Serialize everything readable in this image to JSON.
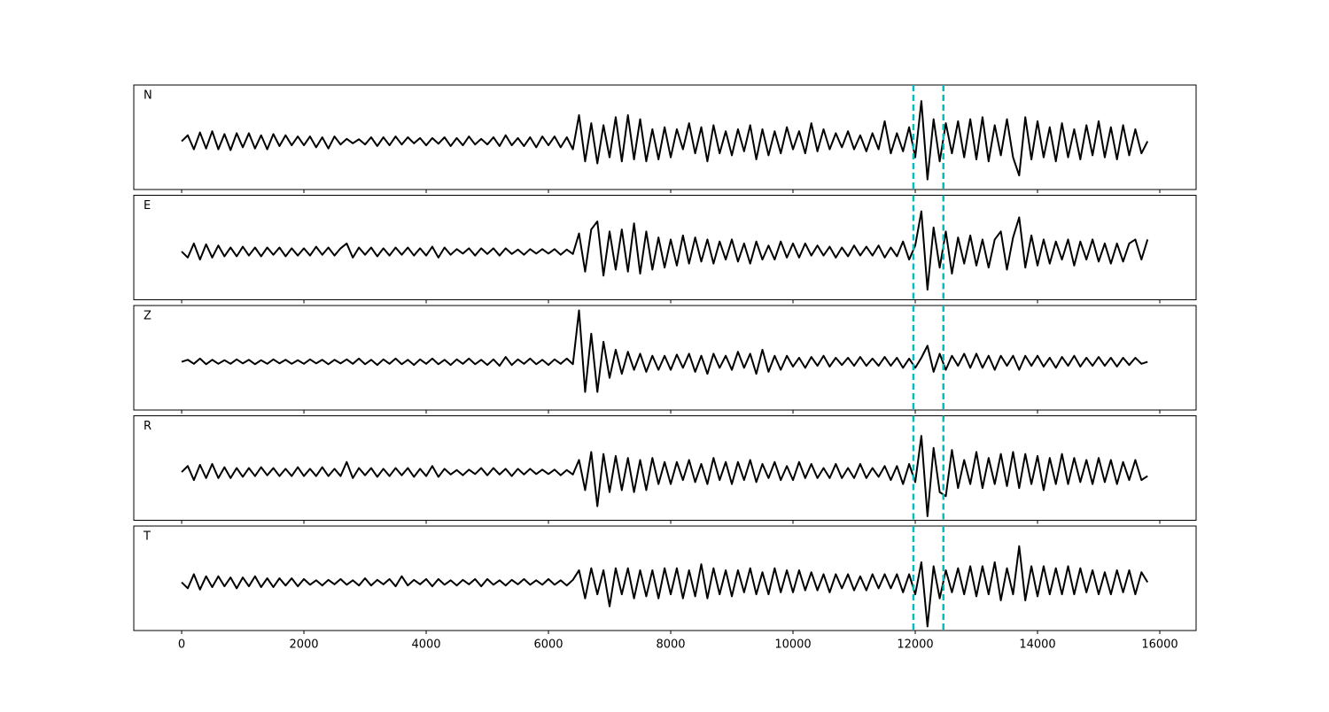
{
  "chart_data": {
    "type": "line",
    "x": [
      0,
      100,
      200,
      300,
      400,
      500,
      600,
      700,
      800,
      900,
      1000,
      1100,
      1200,
      1300,
      1400,
      1500,
      1600,
      1700,
      1800,
      1900,
      2000,
      2100,
      2200,
      2300,
      2400,
      2500,
      2600,
      2700,
      2800,
      2900,
      3000,
      3100,
      3200,
      3300,
      3400,
      3500,
      3600,
      3700,
      3800,
      3900,
      4000,
      4100,
      4200,
      4300,
      4400,
      4500,
      4600,
      4700,
      4800,
      4900,
      5000,
      5100,
      5200,
      5300,
      5400,
      5500,
      5600,
      5700,
      5800,
      5900,
      6000,
      6100,
      6200,
      6300,
      6400,
      6500,
      6600,
      6700,
      6800,
      6900,
      7000,
      7100,
      7200,
      7300,
      7400,
      7500,
      7600,
      7700,
      7800,
      7900,
      8000,
      8100,
      8200,
      8300,
      8400,
      8500,
      8600,
      8700,
      8800,
      8900,
      9000,
      9100,
      9200,
      9300,
      9400,
      9500,
      9600,
      9700,
      9800,
      9900,
      10000,
      10100,
      10200,
      10300,
      10400,
      10500,
      10600,
      10700,
      10800,
      10900,
      11000,
      11100,
      11200,
      11300,
      11400,
      11500,
      11600,
      11700,
      11800,
      11900,
      12000,
      12100,
      12200,
      12300,
      12400,
      12500,
      12600,
      12700,
      12800,
      12900,
      13000,
      13100,
      13200,
      13300,
      13400,
      13500,
      13600,
      13700,
      13800,
      13900,
      14000,
      14100,
      14200,
      14300,
      14400,
      14500,
      14600,
      14700,
      14800,
      14900,
      15000,
      15100,
      15200,
      15300,
      15400,
      15500,
      15600,
      15700,
      15800
    ],
    "xlim": [
      -783,
      16594
    ],
    "xticks": [
      0,
      2000,
      4000,
      6000,
      8000,
      10000,
      12000,
      14000,
      16000
    ],
    "ylim": [
      -1.2,
      1.4
    ],
    "vlines": {
      "x": [
        11970,
        12460
      ],
      "color": "#00bfbf"
    },
    "series": [
      {
        "name": "N",
        "color": "#000000",
        "values": [
          0.0,
          0.15,
          -0.2,
          0.22,
          -0.18,
          0.25,
          -0.2,
          0.18,
          -0.22,
          0.2,
          -0.15,
          0.2,
          -0.18,
          0.15,
          -0.2,
          0.18,
          -0.12,
          0.15,
          -0.1,
          0.12,
          -0.1,
          0.12,
          -0.15,
          0.1,
          -0.18,
          0.12,
          -0.08,
          0.06,
          -0.05,
          0.05,
          -0.08,
          0.1,
          -0.12,
          0.1,
          -0.1,
          0.12,
          -0.08,
          0.1,
          -0.05,
          0.08,
          -0.1,
          0.08,
          -0.06,
          0.1,
          -0.12,
          0.08,
          -0.1,
          0.12,
          -0.08,
          0.06,
          -0.08,
          0.1,
          -0.12,
          0.15,
          -0.1,
          0.08,
          -0.12,
          0.1,
          -0.15,
          0.12,
          -0.1,
          0.12,
          -0.15,
          0.1,
          -0.2,
          0.65,
          -0.5,
          0.45,
          -0.55,
          0.4,
          -0.4,
          0.6,
          -0.5,
          0.65,
          -0.45,
          0.55,
          -0.5,
          0.3,
          -0.45,
          0.35,
          -0.4,
          0.3,
          -0.2,
          0.45,
          -0.3,
          0.35,
          -0.5,
          0.4,
          -0.3,
          0.25,
          -0.35,
          0.3,
          -0.25,
          0.4,
          -0.45,
          0.3,
          -0.35,
          0.25,
          -0.3,
          0.35,
          -0.2,
          0.25,
          -0.3,
          0.45,
          -0.25,
          0.3,
          -0.2,
          0.2,
          -0.15,
          0.25,
          -0.2,
          0.15,
          -0.25,
          0.2,
          -0.2,
          0.5,
          -0.3,
          0.2,
          -0.25,
          0.35,
          -0.4,
          1.0,
          -0.95,
          0.55,
          -0.5,
          0.45,
          -0.3,
          0.5,
          -0.4,
          0.55,
          -0.45,
          0.6,
          -0.5,
          0.4,
          -0.35,
          0.55,
          -0.4,
          -0.85,
          0.6,
          -0.45,
          0.5,
          -0.4,
          0.35,
          -0.5,
          0.45,
          -0.4,
          0.3,
          -0.45,
          0.4,
          -0.35,
          0.5,
          -0.4,
          0.35,
          -0.45,
          0.4,
          -0.35,
          0.3,
          -0.3,
          0.0
        ]
      },
      {
        "name": "E",
        "color": "#000000",
        "values": [
          0.0,
          -0.15,
          0.2,
          -0.2,
          0.18,
          -0.15,
          0.15,
          -0.12,
          0.1,
          -0.12,
          0.12,
          -0.1,
          0.1,
          -0.12,
          0.1,
          -0.08,
          0.1,
          -0.12,
          0.08,
          -0.1,
          0.08,
          -0.1,
          0.12,
          -0.08,
          0.1,
          -0.1,
          0.08,
          0.2,
          -0.15,
          0.1,
          -0.08,
          0.1,
          -0.12,
          0.08,
          -0.1,
          0.1,
          -0.08,
          0.1,
          -0.1,
          0.08,
          -0.1,
          0.12,
          -0.15,
          0.1,
          -0.08,
          0.06,
          -0.05,
          0.08,
          -0.1,
          0.08,
          -0.06,
          0.08,
          -0.1,
          0.08,
          -0.06,
          0.05,
          -0.08,
          0.06,
          -0.05,
          0.06,
          -0.05,
          0.06,
          -0.08,
          0.05,
          -0.06,
          0.45,
          -0.5,
          0.55,
          0.75,
          -0.6,
          0.5,
          -0.45,
          0.55,
          -0.5,
          0.7,
          -0.55,
          0.5,
          -0.45,
          0.35,
          -0.4,
          0.3,
          -0.35,
          0.4,
          -0.3,
          0.35,
          -0.25,
          0.3,
          -0.3,
          0.25,
          -0.2,
          0.3,
          -0.25,
          0.2,
          -0.3,
          0.25,
          -0.2,
          0.15,
          -0.2,
          0.25,
          -0.15,
          0.2,
          -0.15,
          0.2,
          -0.1,
          0.15,
          -0.1,
          0.12,
          -0.15,
          0.1,
          -0.12,
          0.15,
          -0.1,
          0.12,
          -0.1,
          0.15,
          -0.15,
          0.1,
          -0.12,
          0.25,
          -0.2,
          0.15,
          1.0,
          -0.95,
          0.6,
          -0.4,
          0.5,
          -0.55,
          0.35,
          -0.3,
          0.4,
          -0.35,
          0.3,
          -0.4,
          0.3,
          0.5,
          -0.45,
          0.35,
          0.85,
          -0.4,
          0.4,
          -0.35,
          0.3,
          -0.3,
          0.25,
          -0.2,
          0.3,
          -0.35,
          0.25,
          -0.2,
          0.3,
          -0.25,
          0.2,
          -0.3,
          0.2,
          -0.25,
          0.2,
          0.3,
          -0.2,
          0.3
        ]
      },
      {
        "name": "Z",
        "color": "#000000",
        "values": [
          0.0,
          0.05,
          -0.05,
          0.08,
          -0.06,
          0.05,
          -0.05,
          0.04,
          -0.05,
          0.06,
          -0.04,
          0.05,
          -0.06,
          0.04,
          -0.05,
          0.06,
          -0.04,
          0.05,
          -0.05,
          0.04,
          -0.05,
          0.06,
          -0.04,
          0.05,
          -0.06,
          0.05,
          -0.04,
          0.06,
          -0.05,
          0.08,
          -0.06,
          0.05,
          -0.08,
          0.06,
          -0.05,
          0.08,
          -0.06,
          0.05,
          -0.08,
          0.06,
          -0.05,
          0.08,
          -0.06,
          0.05,
          -0.08,
          0.06,
          -0.05,
          0.08,
          -0.06,
          0.05,
          -0.08,
          0.06,
          -0.1,
          0.12,
          -0.08,
          0.06,
          -0.05,
          0.08,
          -0.06,
          0.05,
          -0.08,
          0.06,
          -0.05,
          0.08,
          -0.06,
          1.28,
          -0.75,
          0.7,
          -0.75,
          0.5,
          -0.4,
          0.3,
          -0.3,
          0.25,
          -0.2,
          0.2,
          -0.25,
          0.15,
          -0.2,
          0.15,
          -0.2,
          0.18,
          -0.15,
          0.2,
          -0.25,
          0.15,
          -0.3,
          0.2,
          -0.15,
          0.15,
          -0.2,
          0.25,
          -0.15,
          0.2,
          -0.3,
          0.3,
          -0.25,
          0.15,
          -0.2,
          0.15,
          -0.12,
          0.1,
          -0.15,
          0.12,
          -0.1,
          0.15,
          -0.12,
          0.1,
          -0.08,
          0.1,
          -0.1,
          0.12,
          -0.1,
          0.08,
          -0.1,
          0.12,
          -0.1,
          0.1,
          -0.15,
          0.08,
          -0.15,
          0.1,
          0.4,
          -0.25,
          0.2,
          -0.2,
          0.15,
          -0.1,
          0.2,
          -0.15,
          0.2,
          -0.15,
          0.15,
          -0.2,
          0.15,
          -0.1,
          0.15,
          -0.2,
          0.15,
          -0.1,
          0.15,
          -0.12,
          0.1,
          -0.15,
          0.12,
          -0.1,
          0.15,
          -0.12,
          0.1,
          -0.1,
          0.12,
          -0.1,
          0.1,
          -0.12,
          0.1,
          -0.08,
          0.1,
          -0.05,
          0.0
        ]
      },
      {
        "name": "R",
        "color": "#000000",
        "values": [
          0.0,
          0.15,
          -0.2,
          0.18,
          -0.15,
          0.2,
          -0.15,
          0.12,
          -0.15,
          0.1,
          -0.12,
          0.1,
          -0.1,
          0.12,
          -0.08,
          0.1,
          -0.1,
          0.08,
          -0.1,
          0.12,
          -0.1,
          0.08,
          -0.1,
          0.12,
          -0.1,
          0.08,
          -0.1,
          0.25,
          -0.15,
          0.1,
          -0.08,
          0.1,
          -0.12,
          0.08,
          -0.1,
          0.1,
          -0.08,
          0.1,
          -0.12,
          0.08,
          -0.1,
          0.15,
          -0.12,
          0.08,
          -0.06,
          0.05,
          -0.08,
          0.06,
          -0.05,
          0.1,
          -0.08,
          0.1,
          -0.06,
          0.08,
          -0.1,
          0.08,
          -0.06,
          0.08,
          -0.05,
          0.06,
          -0.05,
          0.06,
          -0.08,
          0.05,
          -0.06,
          0.3,
          -0.45,
          0.5,
          -0.85,
          0.45,
          -0.5,
          0.4,
          -0.45,
          0.35,
          -0.5,
          0.3,
          -0.45,
          0.35,
          -0.3,
          0.25,
          -0.3,
          0.25,
          -0.2,
          0.3,
          -0.25,
          0.2,
          -0.3,
          0.35,
          -0.2,
          0.25,
          -0.3,
          0.25,
          -0.2,
          0.3,
          -0.25,
          0.2,
          -0.15,
          0.25,
          -0.2,
          0.15,
          -0.2,
          0.25,
          -0.15,
          0.2,
          -0.15,
          0.1,
          -0.15,
          0.2,
          -0.15,
          0.1,
          -0.15,
          0.2,
          -0.15,
          0.1,
          -0.12,
          0.15,
          -0.2,
          0.15,
          -0.3,
          0.2,
          -0.25,
          0.9,
          -1.1,
          0.6,
          -0.5,
          -0.6,
          0.55,
          -0.4,
          0.3,
          -0.3,
          0.5,
          -0.4,
          0.35,
          -0.3,
          0.45,
          -0.35,
          0.5,
          -0.4,
          0.45,
          -0.3,
          0.4,
          -0.45,
          0.35,
          -0.3,
          0.45,
          -0.3,
          0.35,
          -0.25,
          0.3,
          -0.3,
          0.35,
          -0.25,
          0.3,
          -0.3,
          0.25,
          -0.2,
          0.3,
          -0.2,
          -0.1
        ]
      },
      {
        "name": "T",
        "color": "#000000",
        "values": [
          0.0,
          -0.15,
          0.2,
          -0.18,
          0.15,
          -0.12,
          0.15,
          -0.1,
          0.12,
          -0.15,
          0.12,
          -0.1,
          0.15,
          -0.12,
          0.1,
          -0.12,
          0.1,
          -0.08,
          0.1,
          -0.1,
          0.08,
          -0.06,
          0.05,
          -0.08,
          0.06,
          -0.05,
          0.08,
          -0.06,
          0.05,
          -0.08,
          0.1,
          -0.08,
          0.06,
          -0.05,
          0.08,
          -0.1,
          0.15,
          -0.08,
          0.06,
          -0.05,
          0.08,
          -0.1,
          0.08,
          -0.06,
          0.05,
          -0.08,
          0.06,
          -0.05,
          0.08,
          -0.1,
          0.08,
          -0.06,
          0.05,
          -0.08,
          0.06,
          -0.05,
          0.08,
          -0.06,
          0.05,
          -0.06,
          0.08,
          -0.06,
          0.05,
          -0.08,
          0.06,
          0.3,
          -0.4,
          0.35,
          -0.3,
          0.3,
          -0.6,
          0.35,
          -0.3,
          0.35,
          -0.4,
          0.3,
          -0.35,
          0.3,
          -0.4,
          0.35,
          -0.3,
          0.35,
          -0.4,
          0.3,
          -0.35,
          0.45,
          -0.4,
          0.35,
          -0.3,
          0.3,
          -0.35,
          0.3,
          -0.25,
          0.35,
          -0.3,
          0.25,
          -0.3,
          0.35,
          -0.25,
          0.3,
          -0.25,
          0.3,
          -0.2,
          0.25,
          -0.2,
          0.2,
          -0.25,
          0.2,
          -0.15,
          0.2,
          -0.2,
          0.15,
          -0.2,
          0.2,
          -0.15,
          0.2,
          -0.15,
          0.2,
          -0.25,
          0.2,
          -0.3,
          0.5,
          -1.1,
          0.4,
          -0.4,
          0.3,
          -0.25,
          0.35,
          -0.3,
          0.4,
          -0.35,
          0.4,
          -0.3,
          0.5,
          -0.45,
          0.35,
          -0.3,
          0.9,
          -0.45,
          0.4,
          -0.35,
          0.4,
          -0.3,
          0.35,
          -0.3,
          0.4,
          -0.3,
          0.35,
          -0.25,
          0.3,
          -0.3,
          0.25,
          -0.3,
          0.3,
          -0.25,
          0.3,
          -0.3,
          0.25,
          0.0
        ]
      }
    ]
  }
}
